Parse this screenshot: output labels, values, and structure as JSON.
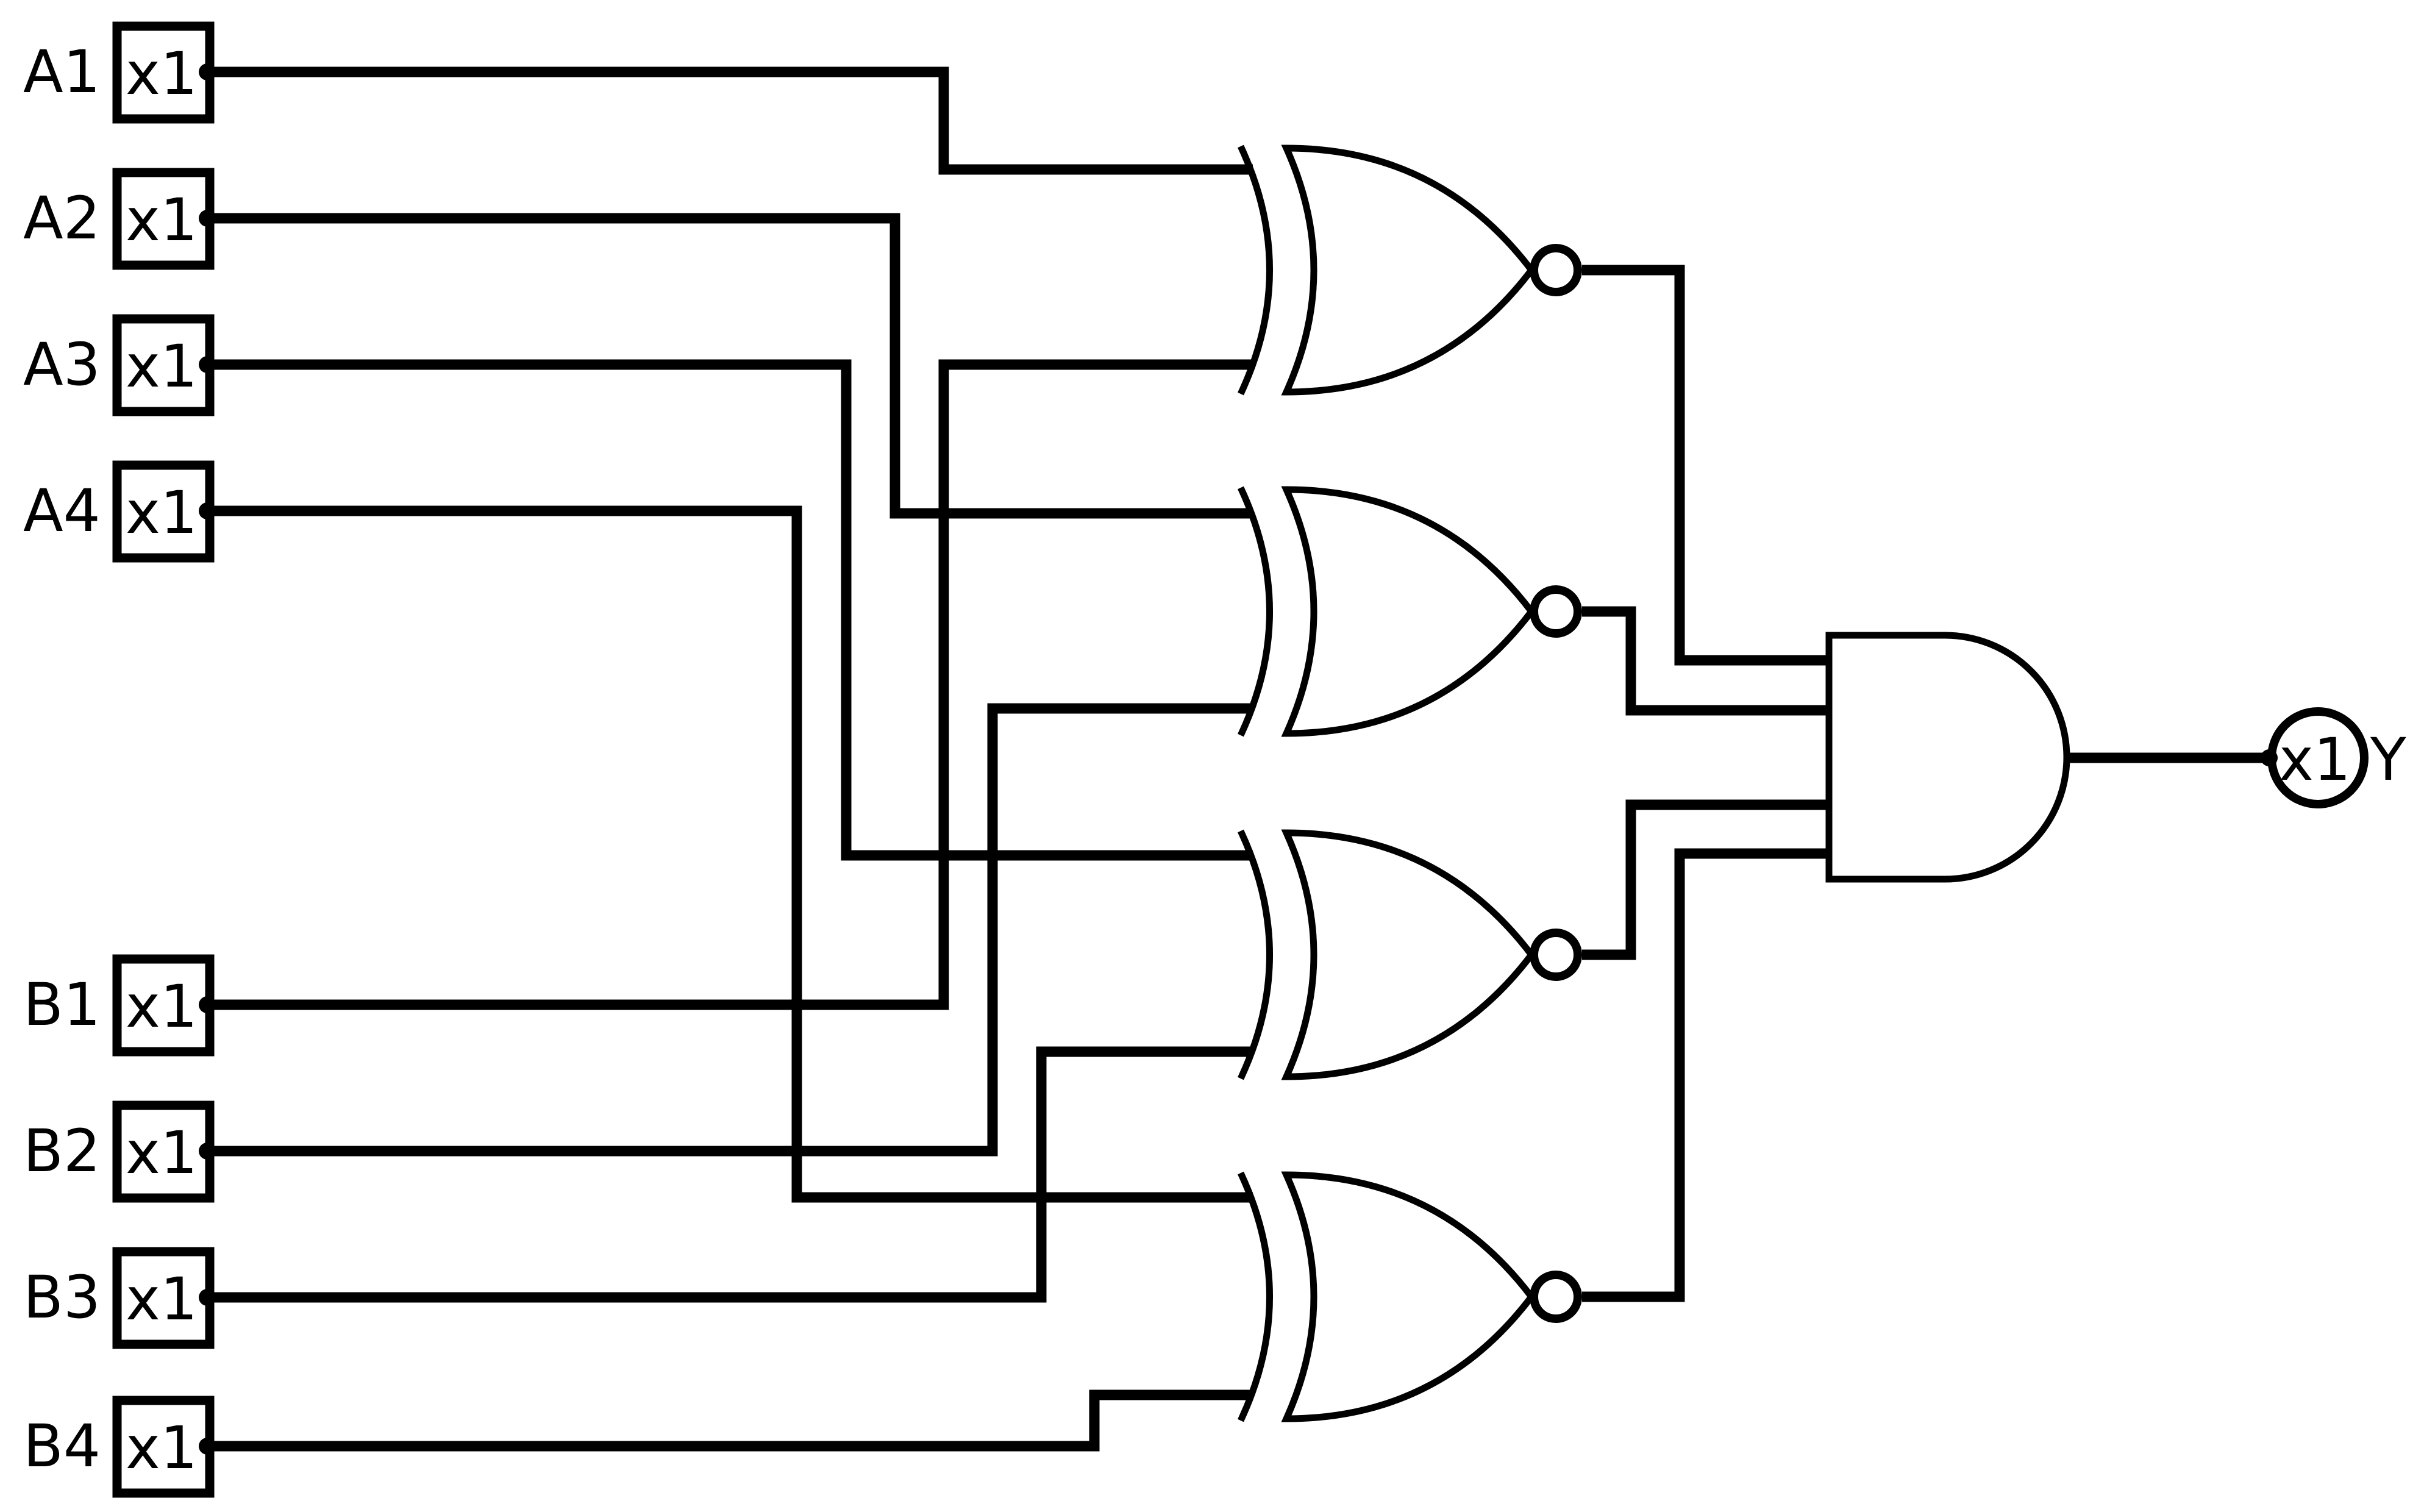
{
  "colors": {
    "line": "#000000",
    "background": "#ffffff"
  },
  "inputs": [
    {
      "name": "A1",
      "box": "x1"
    },
    {
      "name": "A2",
      "box": "x1"
    },
    {
      "name": "A3",
      "box": "x1"
    },
    {
      "name": "A4",
      "box": "x1"
    },
    {
      "name": "B1",
      "box": "x1"
    },
    {
      "name": "B2",
      "box": "x1"
    },
    {
      "name": "B3",
      "box": "x1"
    },
    {
      "name": "B4",
      "box": "x1"
    }
  ],
  "gates": [
    {
      "type": "XNOR",
      "inputs": [
        "A1",
        "B1"
      ]
    },
    {
      "type": "XNOR",
      "inputs": [
        "A2",
        "B2"
      ]
    },
    {
      "type": "XNOR",
      "inputs": [
        "A3",
        "B3"
      ]
    },
    {
      "type": "XNOR",
      "inputs": [
        "A4",
        "B4"
      ]
    },
    {
      "type": "AND",
      "inputs": [
        "XNOR1",
        "XNOR2",
        "XNOR3",
        "XNOR4"
      ]
    }
  ],
  "output": {
    "name": "Y",
    "box": "x1"
  }
}
